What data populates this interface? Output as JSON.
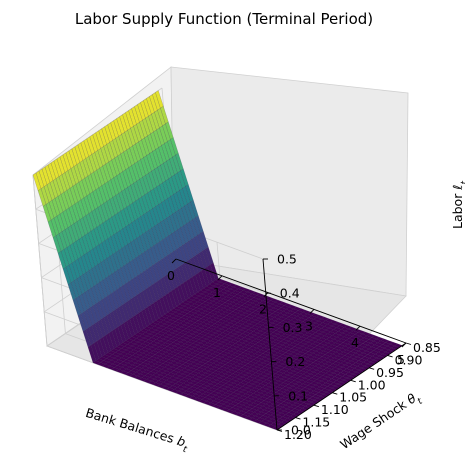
{
  "chart_data": {
    "type": "surface",
    "title": "Labor Supply Function (Terminal Period)",
    "xlabel": "Bank Balances b_t",
    "ylabel": "Wage Shock θ_t",
    "zlabel": "Labor ℓ_t",
    "x_ticks": [
      "0",
      "1",
      "2",
      "3",
      "4",
      "5"
    ],
    "y_ticks": [
      "0.85",
      "0.90",
      "0.95",
      "1.00",
      "1.05",
      "1.10",
      "1.15",
      "1.20"
    ],
    "z_ticks": [
      "0.0",
      "0.1",
      "0.2",
      "0.3",
      "0.4",
      "0.5"
    ],
    "xlim": [
      0,
      5
    ],
    "ylim": [
      0.85,
      1.2
    ],
    "zlim": [
      0,
      0.5
    ],
    "grid": true,
    "colormap": "viridis",
    "colormap_stops": [
      "#440154",
      "#3b528b",
      "#21918c",
      "#5ec962",
      "#fde725"
    ],
    "surface": {
      "x": [
        0.0,
        0.25,
        0.5,
        0.75,
        1.0,
        5.0
      ],
      "y_range": [
        0.86,
        1.2
      ],
      "z_by_x": [
        0.5,
        0.375,
        0.25,
        0.125,
        0.0,
        0.0
      ]
    }
  }
}
